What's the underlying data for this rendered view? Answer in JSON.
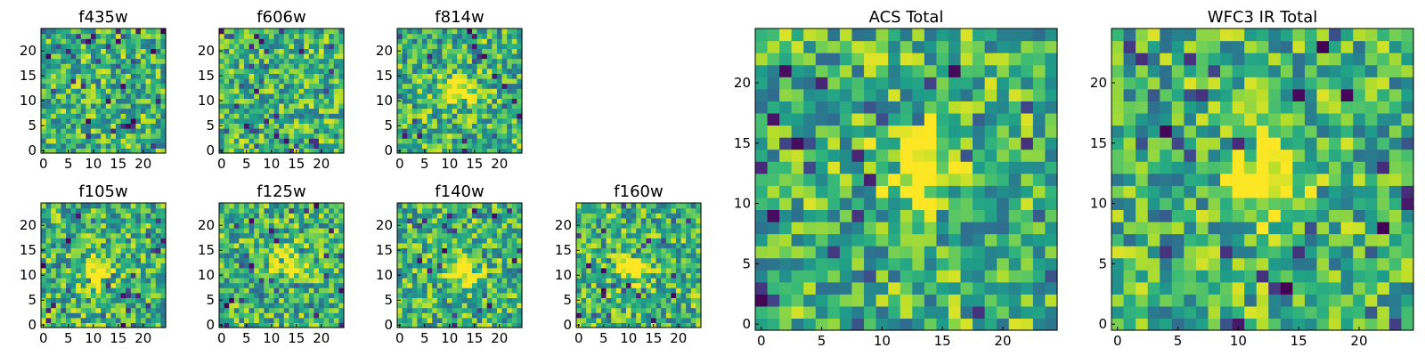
{
  "chart_data": [
    {
      "type": "heatmap",
      "title": "f435w",
      "colormap": "viridis",
      "x_ticks": [
        "0",
        "5",
        "10",
        "15",
        "20"
      ],
      "y_ticks": [
        "0",
        "5",
        "10",
        "15",
        "20"
      ],
      "xlim": [
        -0.5,
        24.5
      ],
      "ylim": [
        -0.5,
        24.5
      ],
      "grid": 25,
      "peak": null
    },
    {
      "type": "heatmap",
      "title": "f606w",
      "colormap": "viridis",
      "x_ticks": [
        "0",
        "5",
        "10",
        "15",
        "20"
      ],
      "y_ticks": [
        "0",
        "5",
        "10",
        "15",
        "20"
      ],
      "xlim": [
        -0.5,
        24.5
      ],
      "ylim": [
        -0.5,
        24.5
      ],
      "grid": 25,
      "peak": null
    },
    {
      "type": "heatmap",
      "title": "f814w",
      "colormap": "viridis",
      "x_ticks": [
        "0",
        "5",
        "10",
        "15",
        "20"
      ],
      "y_ticks": [
        "0",
        "5",
        "10",
        "15",
        "20"
      ],
      "xlim": [
        -0.5,
        24.5
      ],
      "ylim": [
        -0.5,
        24.5
      ],
      "grid": 25,
      "peak": [
        12,
        12
      ]
    },
    {
      "type": "heatmap",
      "title": "f105w",
      "colormap": "viridis",
      "x_ticks": [
        "0",
        "5",
        "10",
        "15",
        "20"
      ],
      "y_ticks": [
        "0",
        "5",
        "10",
        "15",
        "20"
      ],
      "xlim": [
        -0.5,
        24.5
      ],
      "ylim": [
        -0.5,
        24.5
      ],
      "grid": 25,
      "peak": [
        11,
        11
      ]
    },
    {
      "type": "heatmap",
      "title": "f125w",
      "colormap": "viridis",
      "x_ticks": [
        "0",
        "5",
        "10",
        "15",
        "20"
      ],
      "y_ticks": [
        "0",
        "5",
        "10",
        "15",
        "20"
      ],
      "xlim": [
        -0.5,
        24.5
      ],
      "ylim": [
        -0.5,
        24.5
      ],
      "grid": 25,
      "peak": [
        13,
        13
      ]
    },
    {
      "type": "heatmap",
      "title": "f140w",
      "colormap": "viridis",
      "x_ticks": [
        "0",
        "5",
        "10",
        "15",
        "20"
      ],
      "y_ticks": [
        "0",
        "5",
        "10",
        "15",
        "20"
      ],
      "xlim": [
        -0.5,
        24.5
      ],
      "ylim": [
        -0.5,
        24.5
      ],
      "grid": 25,
      "peak": [
        13,
        11
      ]
    },
    {
      "type": "heatmap",
      "title": "f160w",
      "colormap": "viridis",
      "x_ticks": [
        "0",
        "5",
        "10",
        "15",
        "20"
      ],
      "y_ticks": [
        "0",
        "5",
        "10",
        "15",
        "20"
      ],
      "xlim": [
        -0.5,
        24.5
      ],
      "ylim": [
        -0.5,
        24.5
      ],
      "grid": 25,
      "peak": [
        11,
        12
      ]
    },
    {
      "type": "heatmap",
      "title": "ACS Total",
      "colormap": "viridis",
      "x_ticks": [
        "0",
        "5",
        "10",
        "15",
        "20"
      ],
      "y_ticks": [
        "0",
        "5",
        "10",
        "15",
        "20"
      ],
      "xlim": [
        -0.5,
        24.5
      ],
      "ylim": [
        -0.5,
        24.5
      ],
      "grid": 25,
      "peak": [
        13,
        13
      ]
    },
    {
      "type": "heatmap",
      "title": "WFC3 IR Total",
      "colormap": "viridis",
      "x_ticks": [
        "0",
        "5",
        "10",
        "15",
        "20"
      ],
      "y_ticks": [
        "0",
        "5",
        "10",
        "15",
        "20"
      ],
      "xlim": [
        -0.5,
        24.5
      ],
      "ylim": [
        -0.5,
        24.5
      ],
      "grid": 25,
      "peak": [
        12,
        12
      ]
    }
  ]
}
